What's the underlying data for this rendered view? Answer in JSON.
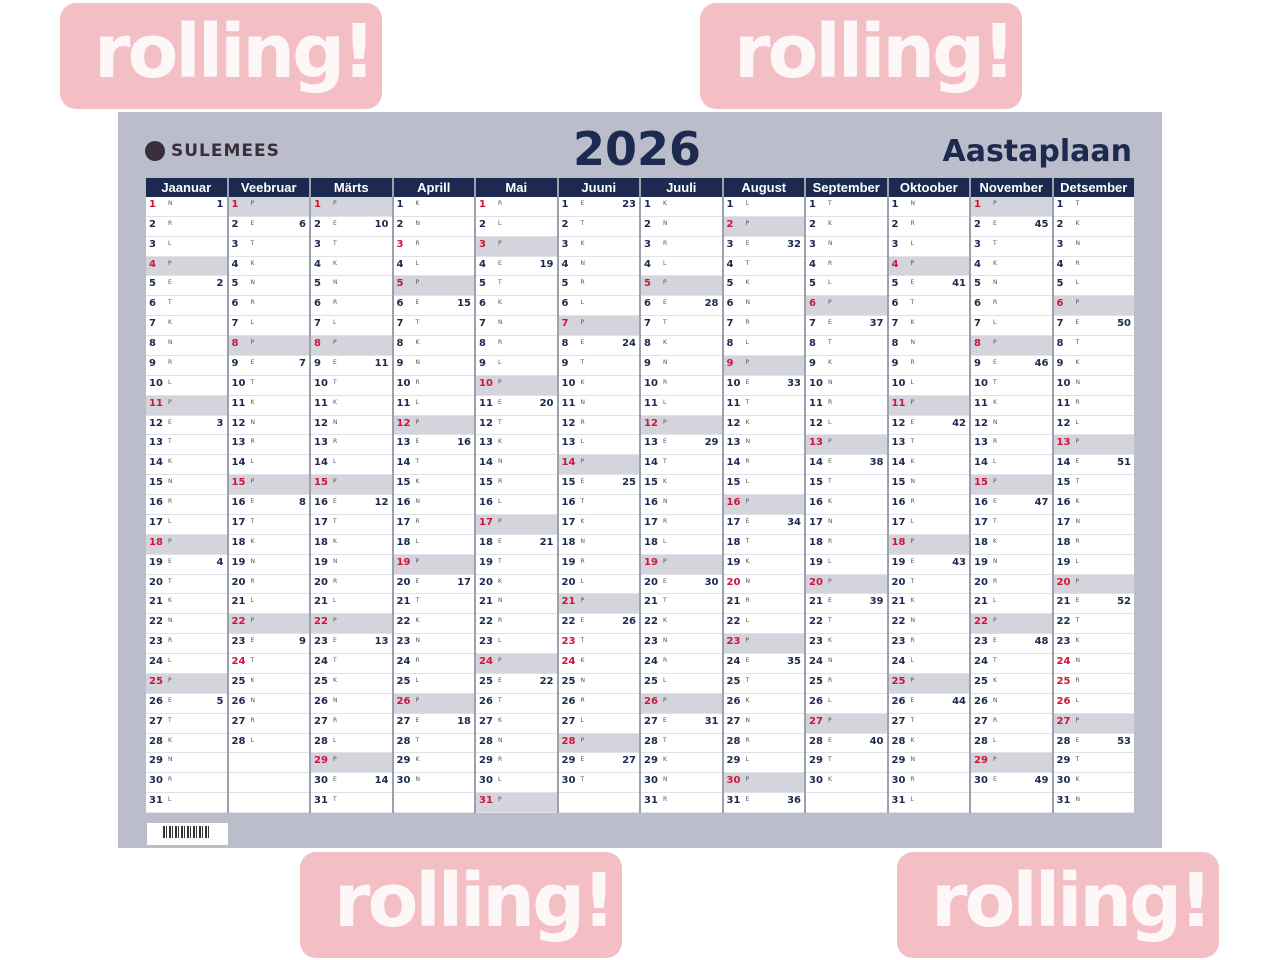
{
  "brand": {
    "logo_text": "SULEMEES"
  },
  "title": {
    "year": "2026",
    "subtitle": "Aastaplaan"
  },
  "colors": {
    "navy": "#1b2a4e",
    "holiday_red": "#d2143a",
    "sunday_gray": "#d3d4dc",
    "board": "#bcbdca",
    "watermark": "#e46e7d"
  },
  "weekday_letters": [
    "E",
    "T",
    "K",
    "N",
    "R",
    "L",
    "P"
  ],
  "months": [
    {
      "name": "Jaanuar",
      "days": 31,
      "first_weekday": 3,
      "red_days": [
        1
      ],
      "weeks": {
        "1": 1,
        "5": 2,
        "12": 3,
        "19": 4,
        "26": 5
      }
    },
    {
      "name": "Veebruar",
      "days": 28,
      "first_weekday": 6,
      "red_days": [
        24
      ],
      "weeks": {
        "2": 6,
        "9": 7,
        "16": 8,
        "23": 9
      }
    },
    {
      "name": "Märts",
      "days": 31,
      "first_weekday": 6,
      "red_days": [],
      "weeks": {
        "2": 10,
        "9": 11,
        "16": 12,
        "23": 13,
        "30": 14
      }
    },
    {
      "name": "Aprill",
      "days": 30,
      "first_weekday": 2,
      "red_days": [
        3,
        5
      ],
      "weeks": {
        "6": 15,
        "13": 16,
        "20": 17,
        "27": 18
      }
    },
    {
      "name": "Mai",
      "days": 31,
      "first_weekday": 4,
      "red_days": [
        1,
        24
      ],
      "weeks": {
        "4": 19,
        "11": 20,
        "18": 21,
        "25": 22
      }
    },
    {
      "name": "Juuni",
      "days": 30,
      "first_weekday": 0,
      "red_days": [
        23,
        24
      ],
      "weeks": {
        "1": 23,
        "8": 24,
        "15": 25,
        "22": 26,
        "29": 27
      }
    },
    {
      "name": "Juuli",
      "days": 31,
      "first_weekday": 2,
      "red_days": [],
      "weeks": {
        "6": 28,
        "13": 29,
        "20": 30,
        "27": 31
      }
    },
    {
      "name": "August",
      "days": 31,
      "first_weekday": 5,
      "red_days": [
        20
      ],
      "weeks": {
        "3": 32,
        "10": 33,
        "17": 34,
        "24": 35,
        "31": 36
      }
    },
    {
      "name": "September",
      "days": 30,
      "first_weekday": 1,
      "red_days": [],
      "weeks": {
        "7": 37,
        "14": 38,
        "21": 39,
        "28": 40
      }
    },
    {
      "name": "Oktoober",
      "days": 31,
      "first_weekday": 3,
      "red_days": [],
      "weeks": {
        "5": 41,
        "12": 42,
        "19": 43,
        "26": 44
      }
    },
    {
      "name": "November",
      "days": 30,
      "first_weekday": 6,
      "red_days": [],
      "weeks": {
        "2": 45,
        "9": 46,
        "16": 47,
        "23": 48,
        "30": 49
      }
    },
    {
      "name": "Detsember",
      "days": 31,
      "first_weekday": 1,
      "red_days": [
        24,
        25,
        26
      ],
      "weeks": {
        "7": 50,
        "14": 51,
        "21": 52,
        "28": 53
      }
    }
  ],
  "watermark": {
    "text": "rolling!"
  }
}
